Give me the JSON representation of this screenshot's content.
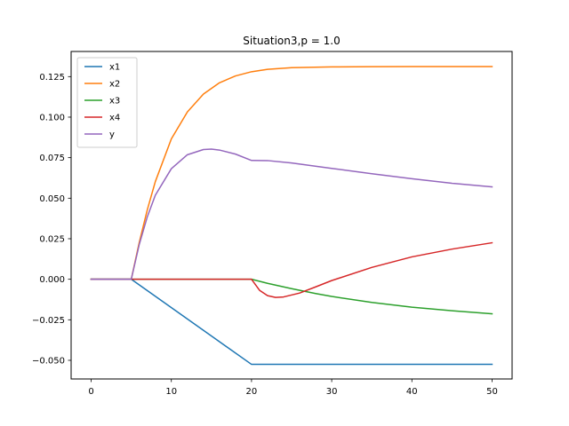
{
  "chart_data": {
    "type": "line",
    "title": "Situation3,p = 1.0",
    "xlabel": "",
    "ylabel": "",
    "xlim": [
      -2.5,
      52.5
    ],
    "ylim": [
      -0.0615,
      0.1405
    ],
    "xticks": [
      0,
      10,
      20,
      30,
      40,
      50
    ],
    "xtick_labels": [
      "0",
      "10",
      "20",
      "30",
      "40",
      "50"
    ],
    "yticks": [
      -0.05,
      -0.025,
      0.0,
      0.025,
      0.05,
      0.075,
      0.1,
      0.125
    ],
    "ytick_labels": [
      "−0.050",
      "−0.025",
      "0.000",
      "0.025",
      "0.050",
      "0.075",
      "0.100",
      "0.125"
    ],
    "grid": false,
    "legend_position": "upper-left",
    "series": [
      {
        "name": "x1",
        "color": "#1f77b4",
        "x": [
          0,
          5,
          20,
          30,
          40,
          50
        ],
        "y": [
          0,
          0,
          -0.0525,
          -0.0525,
          -0.0525,
          -0.0525
        ]
      },
      {
        "name": "x2",
        "color": "#ff7f0e",
        "x": [
          0,
          5,
          6,
          7,
          8,
          10,
          12,
          14,
          16,
          18,
          20,
          22,
          25,
          30,
          35,
          40,
          45,
          50
        ],
        "y": [
          0,
          0,
          0.0228,
          0.0428,
          0.0602,
          0.0866,
          0.1032,
          0.1142,
          0.1212,
          0.1254,
          0.128,
          0.1295,
          0.1305,
          0.131,
          0.1311,
          0.1312,
          0.1312,
          0.1312
        ]
      },
      {
        "name": "x3",
        "color": "#2ca02c",
        "x": [
          0,
          5,
          20,
          22,
          25,
          28,
          30,
          35,
          40,
          45,
          50
        ],
        "y": [
          0,
          0,
          0,
          -0.0025,
          -0.0058,
          -0.0088,
          -0.0106,
          -0.0143,
          -0.0172,
          -0.0194,
          -0.0213
        ]
      },
      {
        "name": "x4",
        "color": "#d62728",
        "x": [
          0,
          5,
          20,
          21,
          22,
          23,
          24,
          26,
          28,
          30,
          35,
          40,
          45,
          50
        ],
        "y": [
          0,
          0,
          0,
          -0.0068,
          -0.0101,
          -0.0112,
          -0.0109,
          -0.0085,
          -0.0047,
          -0.0008,
          0.0073,
          0.0138,
          0.0186,
          0.0225
        ]
      },
      {
        "name": "y",
        "color": "#9467bd",
        "x": [
          0,
          5,
          6,
          7,
          8,
          10,
          12,
          14,
          15,
          16,
          18,
          20,
          22,
          25,
          30,
          35,
          40,
          45,
          50
        ],
        "y": [
          0,
          0,
          0.0215,
          0.0385,
          0.0518,
          0.0682,
          0.0768,
          0.08,
          0.0803,
          0.0797,
          0.0772,
          0.0733,
          0.0732,
          0.0717,
          0.0684,
          0.0651,
          0.062,
          0.0592,
          0.057
        ]
      }
    ]
  }
}
